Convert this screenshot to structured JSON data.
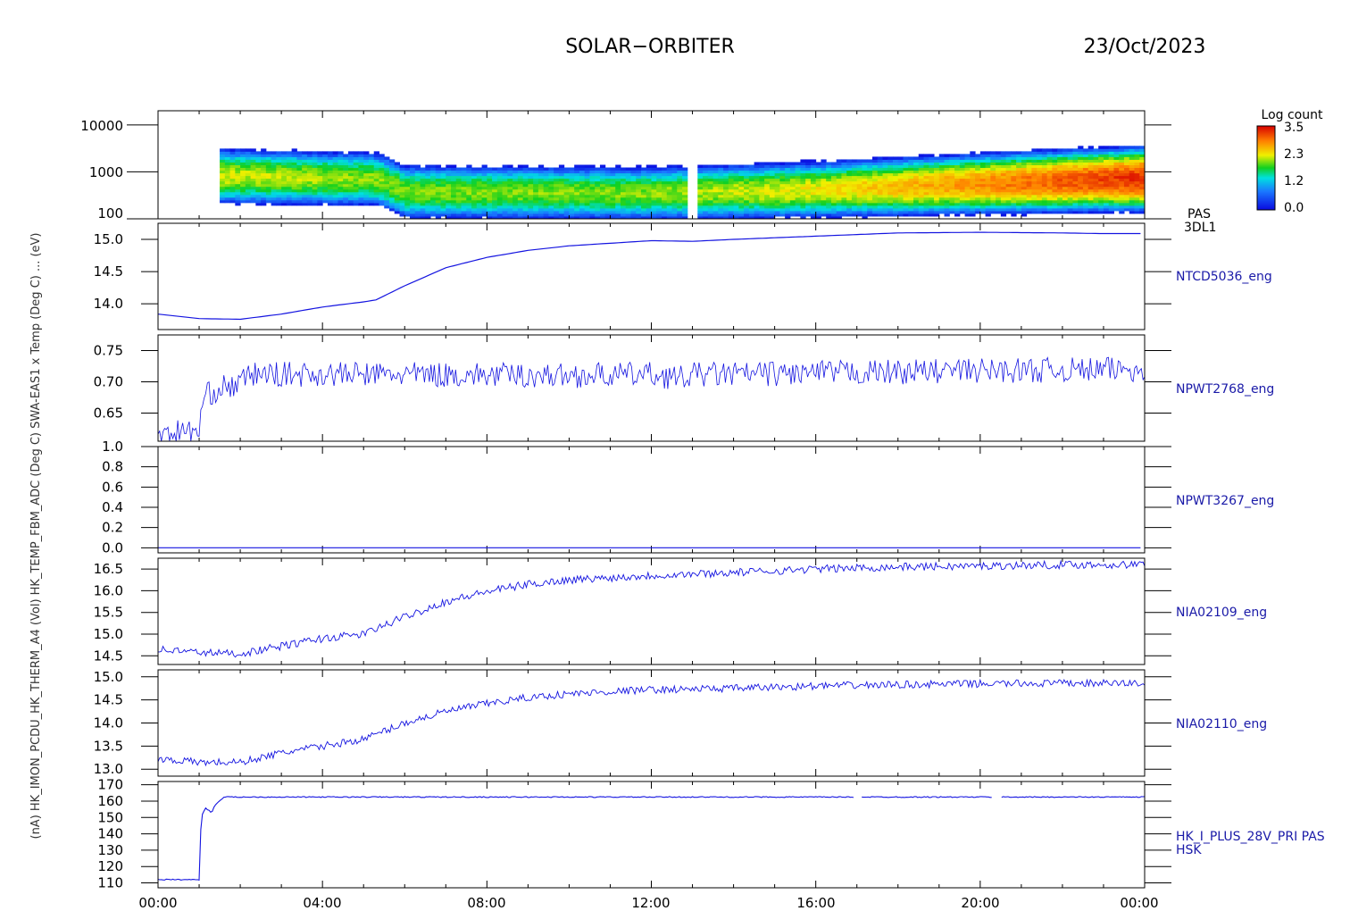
{
  "header": {
    "title": "SOLAR−ORBITER",
    "date": "23/Oct/2023"
  },
  "left_axis_label": "(nA)     HK_IMON_PCDU_HK_THERM_A4 (Vol)  HK_TEMP_FBM_ADC (Deg C)  SWA-EAS1 x Temp (Deg C) ... (eV)",
  "colors": {
    "trace": "#1414e0",
    "axis": "#000000",
    "label": "#1a1aa8"
  },
  "colorbar": {
    "label": "Log count",
    "ticks": [
      "3.5",
      "2.3",
      "1.2",
      "0.0"
    ],
    "range": [
      0.0,
      3.5
    ]
  },
  "x_axis": {
    "ticks": [
      "00:00",
      "04:00",
      "08:00",
      "12:00",
      "16:00",
      "20:00",
      "00:00"
    ],
    "range_hours": [
      0,
      24
    ]
  },
  "chart_data": [
    {
      "type": "heatmap",
      "name": "PAS 3DL1",
      "label_lines": [
        "PAS",
        "3DL1"
      ],
      "ylog": true,
      "ylim": [
        100,
        20000
      ],
      "yticks": [
        "10000",
        "1000",
        "100"
      ],
      "ytick_values": [
        10000,
        1000,
        100
      ],
      "data_gaps_hours": [
        [
          0,
          1.47
        ],
        [
          12.85,
          13.15
        ]
      ],
      "peak_energy_eV": {
        "x": [
          1.5,
          5.3,
          6.0,
          12.0,
          16.0,
          20.0,
          24.0
        ],
        "y": [
          820,
          700,
          380,
          350,
          420,
          560,
          720
        ]
      },
      "peak_log_count": {
        "x": [
          1.5,
          6.0,
          12.0,
          16.0,
          20.0,
          24.0
        ],
        "y": [
          2.2,
          2.0,
          2.0,
          2.3,
          2.8,
          3.3
        ]
      }
    },
    {
      "type": "line",
      "name": "NTCD5036_eng",
      "ylim": [
        13.6,
        15.25
      ],
      "yticks": [
        "15.0",
        "14.5",
        "14.0"
      ],
      "ytick_values": [
        15.0,
        14.5,
        14.0
      ],
      "noise": 0,
      "x": [
        0,
        1,
        2,
        3,
        4,
        5,
        5.3,
        6,
        7,
        8,
        9,
        10,
        11,
        12,
        13,
        14,
        16,
        18,
        20,
        22,
        23,
        24
      ],
      "y": [
        13.84,
        13.77,
        13.76,
        13.84,
        13.95,
        14.03,
        14.06,
        14.28,
        14.56,
        14.72,
        14.83,
        14.9,
        14.94,
        14.98,
        14.97,
        15.0,
        15.05,
        15.1,
        15.11,
        15.1,
        15.09,
        15.09
      ]
    },
    {
      "type": "line",
      "name": "NPWT2768_eng",
      "ylim": [
        0.605,
        0.775
      ],
      "yticks": [
        "0.75",
        "0.70",
        "0.65"
      ],
      "ytick_values": [
        0.75,
        0.7,
        0.65
      ],
      "noise": 0.02,
      "x": [
        0,
        1.0,
        1.1,
        1.5,
        2.0,
        2.2,
        5,
        10,
        12,
        12.8,
        13,
        14,
        16,
        20,
        24
      ],
      "y": [
        0.62,
        0.62,
        0.675,
        0.69,
        0.695,
        0.712,
        0.712,
        0.71,
        0.712,
        0.705,
        0.712,
        0.712,
        0.714,
        0.718,
        0.72
      ]
    },
    {
      "type": "line",
      "name": "NPWT3267_eng",
      "ylim": [
        -0.05,
        1.0
      ],
      "yticks": [
        "1.0",
        "0.8",
        "0.6",
        "0.4",
        "0.2",
        "0.0"
      ],
      "ytick_values": [
        1.0,
        0.8,
        0.6,
        0.4,
        0.2,
        0.0
      ],
      "noise": 0,
      "x": [
        0,
        24
      ],
      "y": [
        0.0,
        0.0
      ]
    },
    {
      "type": "line",
      "name": "NIA02109_eng",
      "ylim": [
        14.3,
        16.75
      ],
      "yticks": [
        "16.5",
        "16.0",
        "15.5",
        "15.0",
        "14.5"
      ],
      "ytick_values": [
        16.5,
        16.0,
        15.5,
        15.0,
        14.5
      ],
      "noise": 0.09,
      "x": [
        0,
        1,
        2,
        3,
        4,
        5,
        6,
        7,
        8,
        9,
        10,
        11,
        12,
        14,
        16,
        18,
        20,
        22,
        24
      ],
      "y": [
        14.65,
        14.58,
        14.55,
        14.72,
        14.9,
        15.0,
        15.4,
        15.75,
        15.98,
        16.15,
        16.25,
        16.3,
        16.35,
        16.42,
        16.5,
        16.55,
        16.57,
        16.6,
        16.6
      ]
    },
    {
      "type": "line",
      "name": "NIA02110_eng",
      "ylim": [
        12.85,
        15.15
      ],
      "yticks": [
        "15.0",
        "14.5",
        "14.0",
        "13.5",
        "13.0"
      ],
      "ytick_values": [
        15.0,
        14.5,
        14.0,
        13.5,
        13.0
      ],
      "noise": 0.08,
      "x": [
        0,
        1,
        2,
        3,
        4,
        5,
        6,
        7,
        8,
        9,
        10,
        11,
        12,
        14,
        16,
        18,
        20,
        22,
        24
      ],
      "y": [
        13.23,
        13.15,
        13.15,
        13.35,
        13.5,
        13.65,
        14.0,
        14.25,
        14.42,
        14.55,
        14.63,
        14.68,
        14.72,
        14.75,
        14.8,
        14.83,
        14.85,
        14.86,
        14.86
      ]
    },
    {
      "type": "line",
      "name": "HK_I_PLUS_28V_PRI PAS HSK",
      "label_lines": [
        "HK_I_PLUS_28V_PRI PAS",
        "HSK"
      ],
      "ylim": [
        107,
        172
      ],
      "yticks": [
        "170",
        "160",
        "150",
        "140",
        "130",
        "120",
        "110"
      ],
      "ytick_values": [
        170,
        160,
        150,
        140,
        130,
        120,
        110
      ],
      "noise": 0.3,
      "x": [
        0,
        1.0,
        1.05,
        1.15,
        1.3,
        1.4,
        1.6,
        12.0,
        24
      ],
      "y": [
        112,
        112,
        150,
        156,
        153,
        158,
        162.5,
        162.5,
        162.5
      ],
      "gaps_hours": [
        [
          16.95,
          17.1
        ],
        [
          20.3,
          20.5
        ]
      ]
    }
  ]
}
